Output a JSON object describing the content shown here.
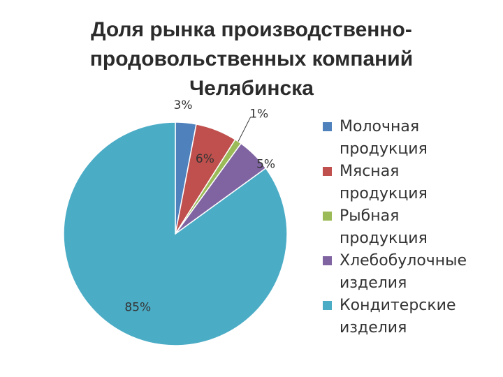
{
  "chart_data": {
    "type": "pie",
    "title_lines": [
      "Доля рынка производственно-",
      "продовольственных компаний",
      "Челябинска"
    ],
    "categories": [
      "Молочная продукция",
      "Мясная продукция",
      "Рыбная продукция",
      "Хлебобулочные изделия",
      "Кондитерские изделия"
    ],
    "legend_lines": [
      [
        "Молочная",
        "продукция"
      ],
      [
        "Мясная",
        "продукция"
      ],
      [
        "Рыбная",
        "продукция"
      ],
      [
        "Хлебобулочные",
        "изделия"
      ],
      [
        "Кондитерские",
        "изделия"
      ]
    ],
    "values": [
      3,
      6,
      1,
      5,
      85
    ],
    "data_labels": [
      "3%",
      "6%",
      "1%",
      "5%",
      "85%"
    ],
    "colors": [
      "#4f81bd",
      "#c0504d",
      "#9bbb59",
      "#8064a2",
      "#4bacc6"
    ],
    "legend_position": "right"
  }
}
